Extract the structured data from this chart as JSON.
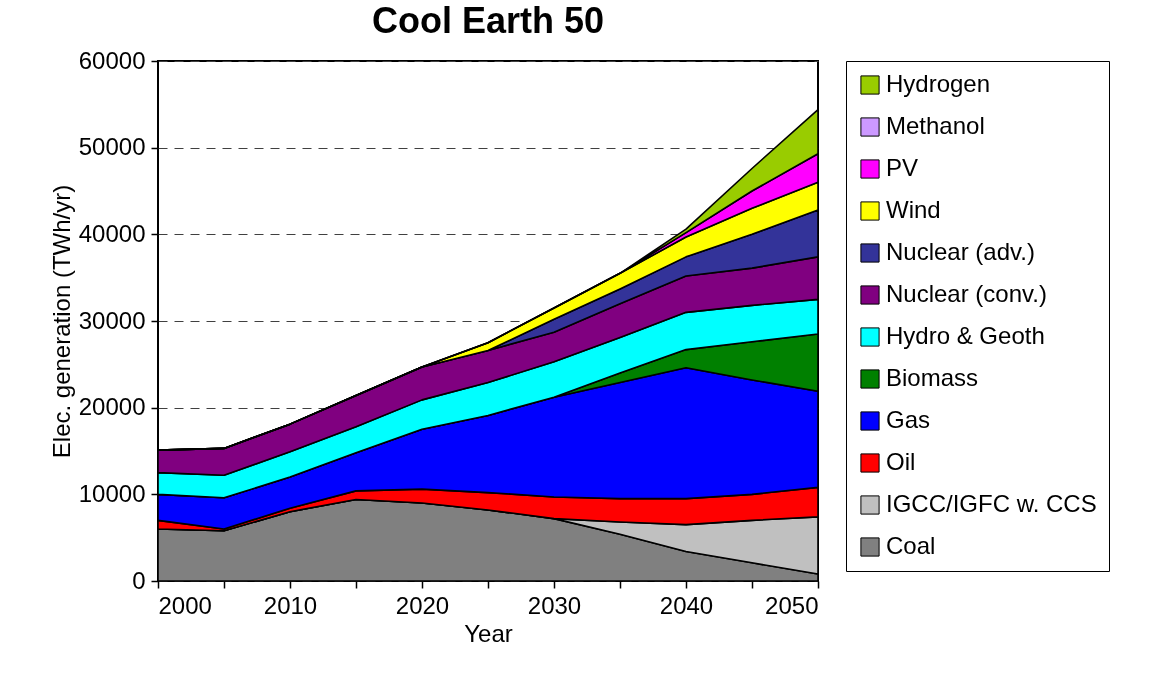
{
  "chart_data": {
    "type": "area",
    "title": "Cool Earth 50",
    "xlabel": "Year",
    "ylabel": "Elec. generation (TWh/yr)",
    "x": [
      2000,
      2005,
      2010,
      2015,
      2020,
      2025,
      2030,
      2035,
      2040,
      2045,
      2050
    ],
    "stacked": true,
    "series": [
      {
        "name": "Coal",
        "color": "#808080",
        "values": [
          6000,
          5800,
          8000,
          9400,
          9000,
          8200,
          7200,
          5400,
          3400,
          2100,
          800
        ]
      },
      {
        "name": "IGCC/IGFC w. CCS",
        "color": "#c0c0c0",
        "values": [
          0,
          0,
          0,
          0,
          0,
          0,
          0,
          1400,
          3100,
          4900,
          6600
        ]
      },
      {
        "name": "Oil",
        "color": "#ff0000",
        "values": [
          1000,
          200,
          400,
          1000,
          1600,
          2000,
          2500,
          2700,
          3000,
          3000,
          3400
        ]
      },
      {
        "name": "Gas",
        "color": "#0000ff",
        "values": [
          3000,
          3600,
          3600,
          4400,
          6900,
          8900,
          11500,
          13400,
          15100,
          13200,
          11100
        ]
      },
      {
        "name": "Biomass",
        "color": "#008000",
        "values": [
          0,
          0,
          0,
          0,
          0,
          0,
          0,
          1100,
          2100,
          4400,
          6600
        ]
      },
      {
        "name": "Hydro & Geoth",
        "color": "#00ffff",
        "values": [
          2500,
          2600,
          2900,
          3000,
          3400,
          3800,
          4100,
          4100,
          4300,
          4200,
          4000
        ]
      },
      {
        "name": "Nuclear (conv.)",
        "color": "#800080",
        "values": [
          2600,
          3100,
          3200,
          3600,
          3800,
          3700,
          3400,
          3900,
          4200,
          4300,
          4900
        ]
      },
      {
        "name": "Nuclear (adv.)",
        "color": "#333399",
        "values": [
          0,
          0,
          0,
          0,
          0,
          0,
          1500,
          1700,
          2200,
          3900,
          5400
        ]
      },
      {
        "name": "Wind",
        "color": "#ffff00",
        "values": [
          0,
          0,
          0,
          0,
          0,
          900,
          1300,
          1800,
          2300,
          3000,
          3200
        ]
      },
      {
        "name": "PV",
        "color": "#ff00ff",
        "values": [
          0,
          0,
          0,
          0,
          0,
          0,
          0,
          0,
          500,
          2000,
          3300
        ]
      },
      {
        "name": "Methanol",
        "color": "#cc99ff",
        "values": [
          null,
          null,
          null,
          null,
          null,
          null,
          null,
          null,
          null,
          null,
          null
        ]
      },
      {
        "name": "Hydrogen",
        "color": "#99cc00",
        "values": [
          0,
          0,
          0,
          0,
          0,
          0,
          0,
          0,
          400,
          2600,
          5100
        ]
      }
    ],
    "xlim": [
      2000,
      2050
    ],
    "xticks": [
      2000,
      {
        "value": 2005,
        "label": null
      },
      2010,
      {
        "value": 2015,
        "label": null
      },
      2020,
      {
        "value": 2025,
        "label": null
      },
      2030,
      {
        "value": 2035,
        "label": null
      },
      2040,
      {
        "value": 2045,
        "label": null
      },
      2050
    ],
    "ylim": [
      0,
      60000
    ],
    "yticks": [
      0,
      10000,
      20000,
      30000,
      40000,
      50000,
      60000
    ],
    "grid": "y",
    "legend": "right"
  }
}
